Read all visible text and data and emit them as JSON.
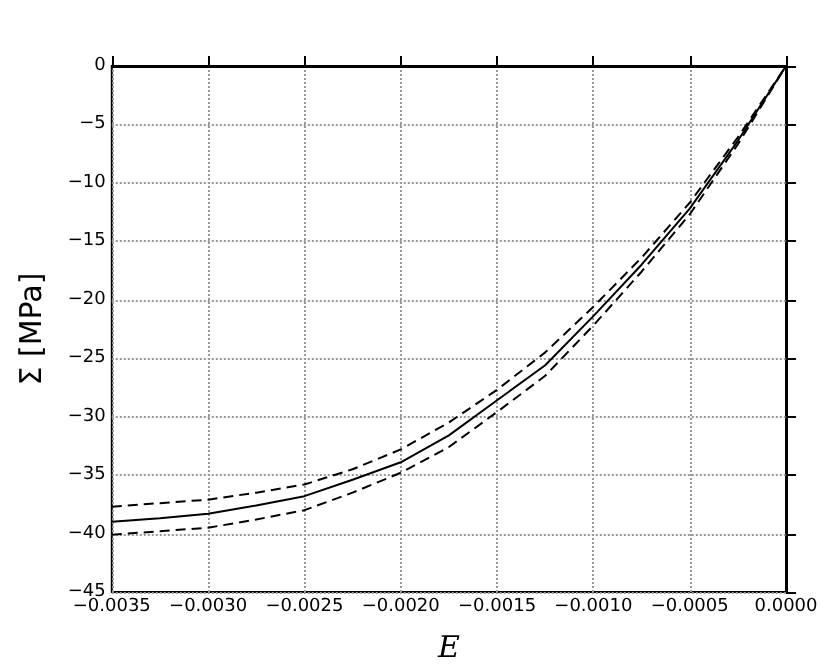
{
  "chart_data": {
    "type": "line",
    "xlabel": "E",
    "ylabel": "Σ [MPa]",
    "x": [
      -0.0035,
      -0.00325,
      -0.003,
      -0.00275,
      -0.0025,
      -0.00225,
      -0.002,
      -0.00175,
      -0.0015,
      -0.00125,
      -0.001,
      -0.00075,
      -0.0005,
      -0.00025,
      0
    ],
    "series": [
      {
        "color": "#000000",
        "line_style": "solid",
        "values": [
          -39.0,
          -38.7,
          -38.3,
          -37.6,
          -36.8,
          -35.4,
          -33.9,
          -31.6,
          -28.6,
          -25.6,
          -21.4,
          -17.0,
          -12.2,
          -6.4,
          0
        ]
      },
      {
        "color": "#000000",
        "line_style": "dashed",
        "values": [
          -37.7,
          -37.4,
          -37.1,
          -36.5,
          -35.8,
          -34.5,
          -32.8,
          -30.5,
          -27.7,
          -24.5,
          -20.6,
          -16.4,
          -11.7,
          -6.1,
          0
        ]
      },
      {
        "color": "#000000",
        "line_style": "dashed",
        "values": [
          -40.1,
          -39.8,
          -39.5,
          -38.8,
          -38.0,
          -36.5,
          -34.8,
          -32.6,
          -29.6,
          -26.5,
          -22.2,
          -17.6,
          -12.7,
          -6.7,
          0
        ]
      }
    ],
    "xlim": [
      -0.0035,
      0
    ],
    "xticks": [
      {
        "value": -0.0035,
        "label": "−0.0035"
      },
      {
        "value": -0.003,
        "label": "−0.0030"
      },
      {
        "value": -0.0025,
        "label": "−0.0025"
      },
      {
        "value": -0.002,
        "label": "−0.0020"
      },
      {
        "value": -0.0015,
        "label": "−0.0015"
      },
      {
        "value": -0.001,
        "label": "−0.0010"
      },
      {
        "value": -0.0005,
        "label": "−0.0005"
      },
      {
        "value": 0,
        "label": "0.0000"
      }
    ],
    "ylim": [
      -45,
      0
    ],
    "yticks": [
      {
        "value": -45,
        "label": "−45"
      },
      {
        "value": -40,
        "label": "−40"
      },
      {
        "value": -35,
        "label": "−35"
      },
      {
        "value": -30,
        "label": "−30"
      },
      {
        "value": -25,
        "label": "−25"
      },
      {
        "value": -20,
        "label": "−20"
      },
      {
        "value": -15,
        "label": "−15"
      },
      {
        "value": -10,
        "label": "−10"
      },
      {
        "value": -5,
        "label": "−5"
      },
      {
        "value": 0,
        "label": "0"
      }
    ],
    "grid": true,
    "marker": "none"
  }
}
